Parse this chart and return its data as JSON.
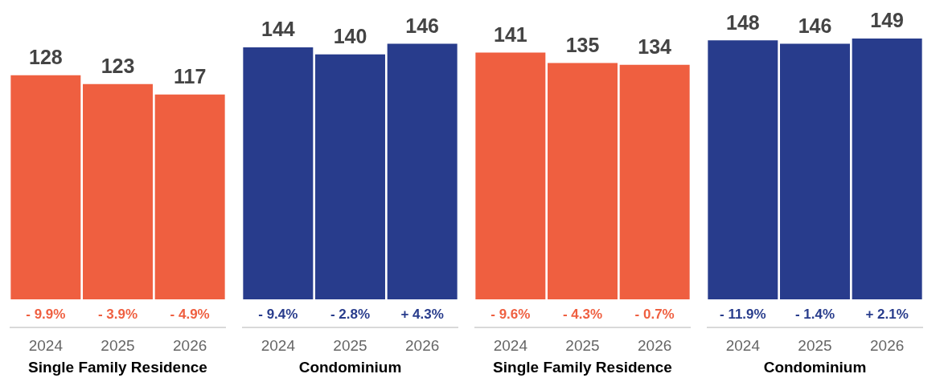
{
  "chart_data": [
    {
      "type": "bar",
      "xlabel": "Single Family Residence",
      "categories": [
        "2024",
        "2025",
        "2026"
      ],
      "values": [
        128,
        123,
        117
      ],
      "color": "#ef5f40",
      "data_labels": true,
      "legend": false,
      "annotations": [
        "- 9.9%",
        "- 3.9%",
        "- 4.9%"
      ]
    },
    {
      "type": "bar",
      "xlabel": "Condominium",
      "categories": [
        "2024",
        "2025",
        "2026"
      ],
      "values": [
        144,
        140,
        146
      ],
      "color": "#283c8c",
      "data_labels": true,
      "legend": false,
      "annotations": [
        "- 9.4%",
        "- 2.8%",
        "+ 4.3%"
      ]
    },
    {
      "type": "bar",
      "xlabel": "Single Family Residence",
      "categories": [
        "2024",
        "2025",
        "2026"
      ],
      "values": [
        141,
        135,
        134
      ],
      "color": "#ef5f40",
      "data_labels": true,
      "legend": false,
      "annotations": [
        "- 9.6%",
        "- 4.3%",
        "- 0.7%"
      ]
    },
    {
      "type": "bar",
      "xlabel": "Condominium",
      "categories": [
        "2024",
        "2025",
        "2026"
      ],
      "values": [
        148,
        146,
        149
      ],
      "color": "#283c8c",
      "data_labels": true,
      "legend": false,
      "annotations": [
        "- 11.9%",
        "- 1.4%",
        "+ 2.1%"
      ]
    }
  ]
}
